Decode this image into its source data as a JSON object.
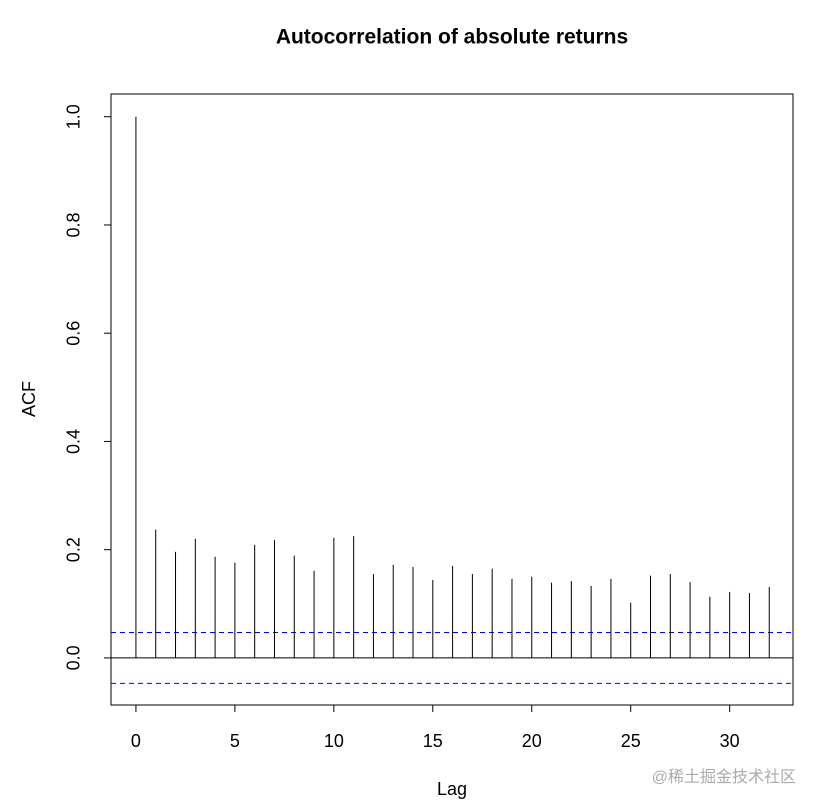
{
  "chart_data": {
    "type": "acf",
    "title": "Autocorrelation of absolute returns",
    "x_label": "Lag",
    "y_label": "ACF",
    "x": [
      0,
      1,
      2,
      3,
      4,
      5,
      6,
      7,
      8,
      9,
      10,
      11,
      12,
      13,
      14,
      15,
      16,
      17,
      18,
      19,
      20,
      21,
      22,
      23,
      24,
      25,
      26,
      27,
      28,
      29,
      30,
      31,
      32
    ],
    "values": [
      1.0,
      0.237,
      0.196,
      0.22,
      0.187,
      0.176,
      0.209,
      0.218,
      0.189,
      0.161,
      0.222,
      0.225,
      0.155,
      0.172,
      0.168,
      0.144,
      0.17,
      0.155,
      0.165,
      0.146,
      0.15,
      0.139,
      0.142,
      0.133,
      0.146,
      0.102,
      0.152,
      0.155,
      0.14,
      0.113,
      0.122,
      0.12,
      0.131
    ],
    "color": "#000000",
    "ci_upper": 0.047,
    "ci_lower": -0.047,
    "ci_color": "#0000ee",
    "xlim": [
      -1.26,
      33.2
    ],
    "ylim": [
      -0.087,
      1.042
    ],
    "xticks": [
      0,
      5,
      10,
      15,
      20,
      25,
      30
    ],
    "yticks": [
      {
        "value": 0,
        "label": "0.0"
      },
      0.2,
      0.4,
      0.6,
      0.8,
      {
        "value": 1,
        "label": "1.0"
      }
    ]
  },
  "watermark": "@稀土掘金技术社区"
}
